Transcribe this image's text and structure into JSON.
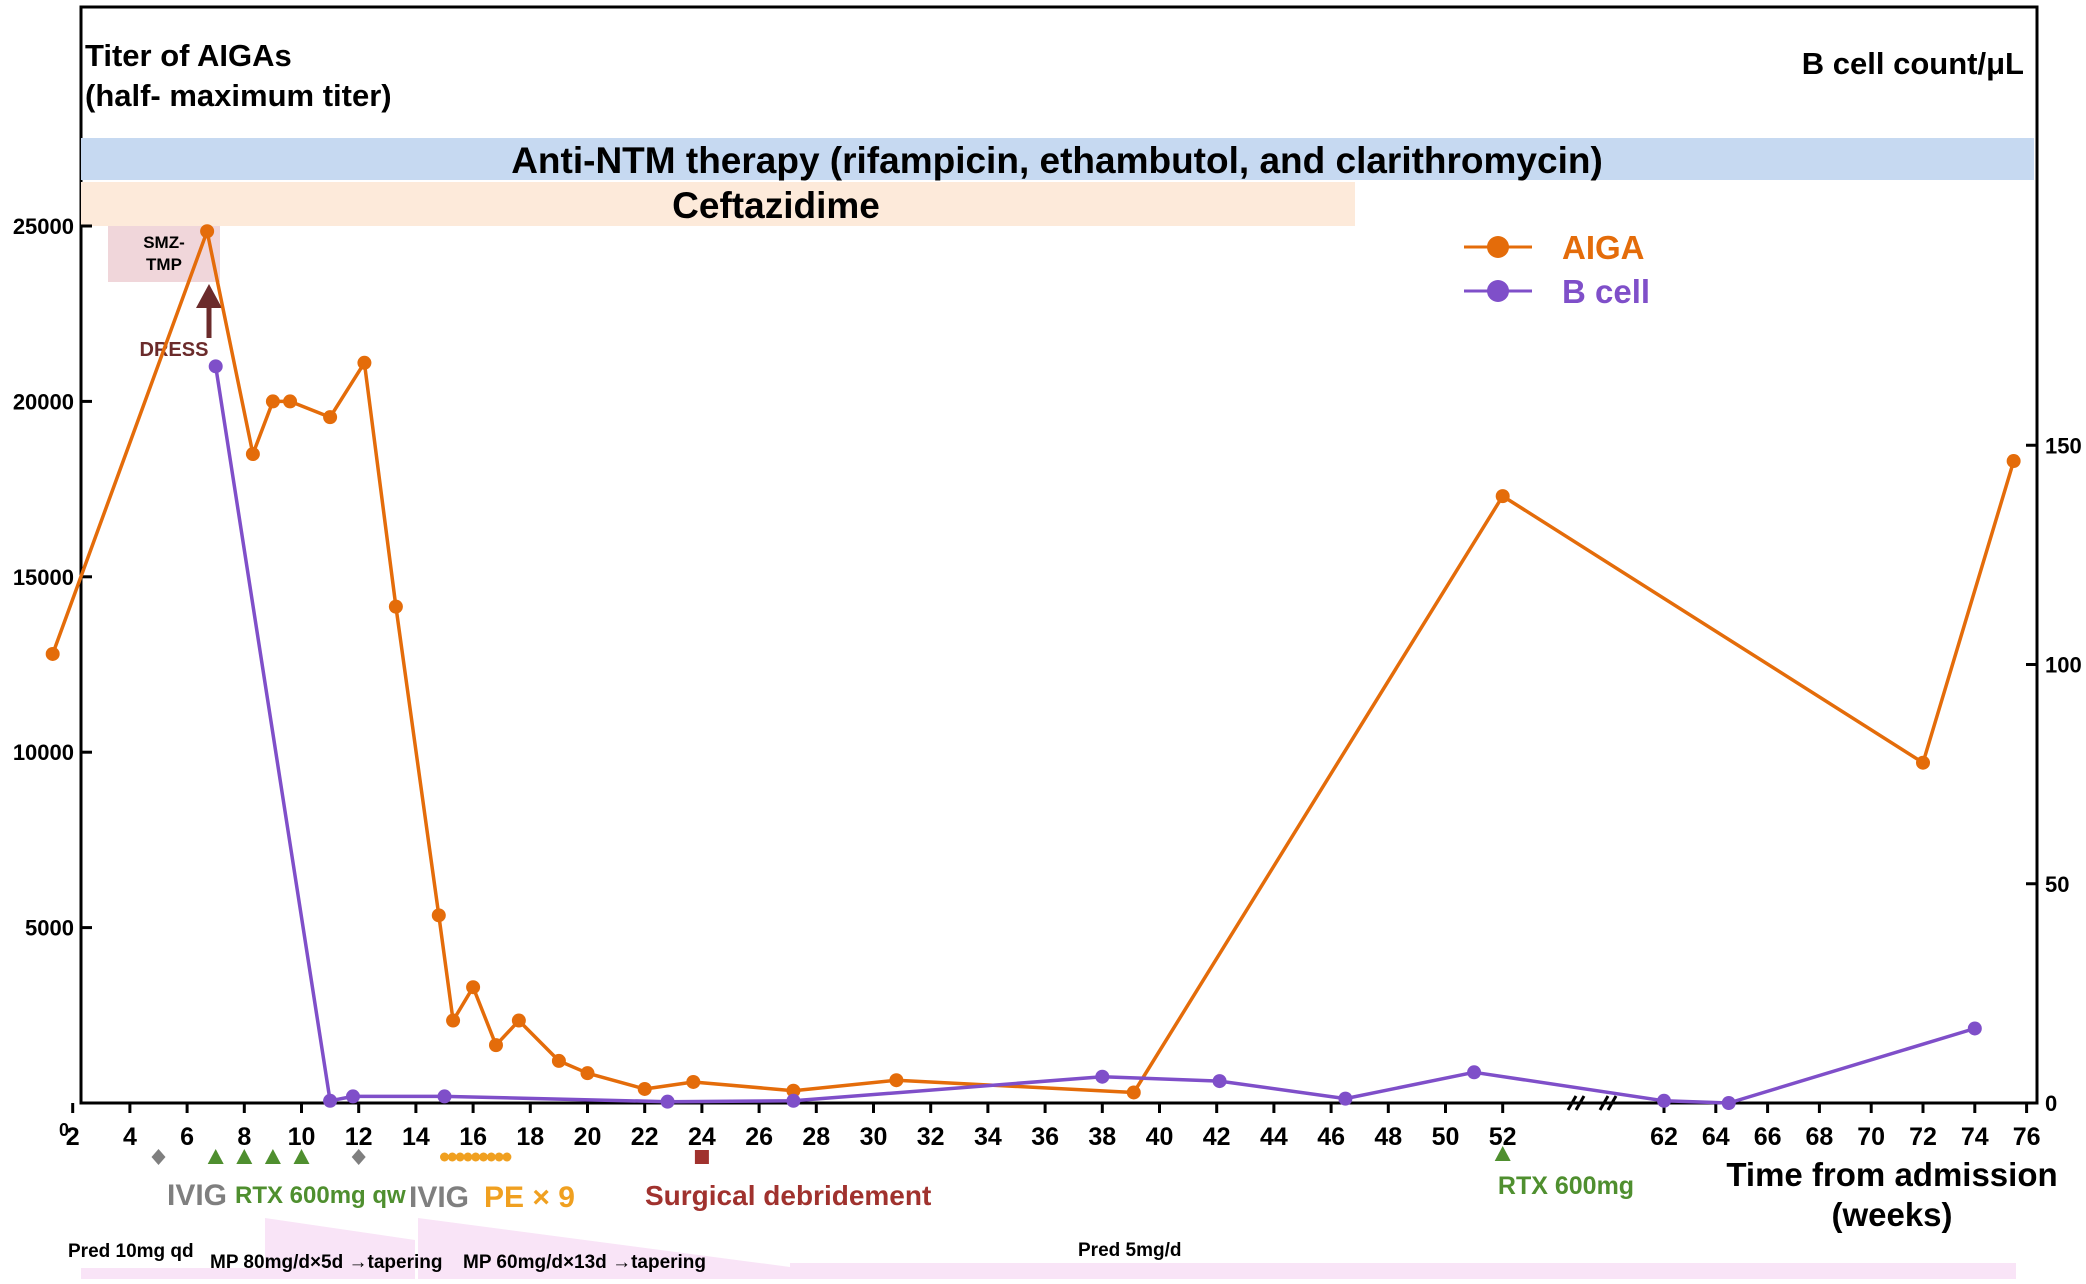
{
  "chart_data": {
    "type": "line",
    "left_axis_title_line1": "Titer of AIGAs",
    "left_axis_title_line2": "(half- maximum titer)",
    "right_axis_title": "B cell count/μL",
    "xlabel_line1": "Time from admission",
    "xlabel_line2": "(weeks)",
    "y_left_lim": [
      0,
      25000
    ],
    "y_left_ticks": [
      5000,
      10000,
      15000,
      20000,
      25000
    ],
    "y_right_lim": [
      0,
      200
    ],
    "y_right_ticks": [
      0,
      50,
      100,
      150
    ],
    "x_origin_label": "0",
    "x_ticks": [
      2,
      4,
      6,
      8,
      10,
      12,
      14,
      16,
      18,
      20,
      22,
      24,
      26,
      28,
      30,
      32,
      34,
      36,
      38,
      40,
      42,
      44,
      46,
      48,
      50,
      52,
      62,
      64,
      66,
      68,
      70,
      72,
      74,
      76
    ],
    "axis_break": "between 52 and 62",
    "grid": false,
    "legend_position": "top-right",
    "series": [
      {
        "name": "AIGA",
        "axis": "left",
        "color": "#E46C0A",
        "x": [
          1.3,
          6.7,
          8.3,
          9.0,
          9.6,
          11.0,
          12.2,
          13.3,
          14.8,
          15.3,
          16.0,
          16.8,
          17.6,
          19.0,
          20.0,
          22.0,
          23.7,
          27.2,
          30.8,
          39.1,
          52.0,
          72.0,
          75.5
        ],
        "values": [
          12800,
          24850,
          18500,
          20000,
          20000,
          19550,
          21100,
          14150,
          5350,
          2350,
          3300,
          1650,
          2350,
          1200,
          850,
          400,
          600,
          350,
          650,
          300,
          17300,
          9700,
          18300
        ]
      },
      {
        "name": "B cell",
        "axis": "right",
        "color": "#7F4FC9",
        "x": [
          7.0,
          11.0,
          11.8,
          15.0,
          22.8,
          27.2,
          38.0,
          42.1,
          46.5,
          51.0,
          62.0,
          64.5,
          74.0
        ],
        "values": [
          168,
          0.5,
          1.5,
          1.5,
          0.3,
          0.5,
          6,
          5,
          1,
          7,
          0.5,
          0,
          17
        ]
      }
    ],
    "annotations": {
      "anti_ntm": "Anti-NTM therapy (rifampicin, ethambutol, and clarithromycin)",
      "ceftazidime": "Ceftazidime",
      "smz_line1": "SMZ-",
      "smz_line2": "TMP",
      "dress": "DRESS",
      "ivig_1": "IVIG",
      "rtx_qw": "RTX 600mg qw",
      "ivig_2": "IVIG",
      "pe": "PE × 9",
      "surgical": "Surgical debridement",
      "rtx_52": "RTX 600mg",
      "pred_qd": "Pred 10mg qd",
      "mp_80": "MP 80mg/d×5d →tapering",
      "mp_60": "MP 60mg/d×13d →tapering",
      "pred_5": "Pred 5mg/d"
    },
    "colors": {
      "aiga": "#E46C0A",
      "bcell": "#7F4FC9",
      "anti_ntm_band": "#C6D9F1",
      "ceftazidime_band": "#FDEADA",
      "smz_box": "#F0D6DA",
      "dress_arrow": "#6B2B2B",
      "ivig": "#7F7F7F",
      "rtx": "#4F8F2F",
      "pe": "#F0A020",
      "surgical": "#A0322E",
      "steroid_band": "#F9E4F7"
    }
  }
}
